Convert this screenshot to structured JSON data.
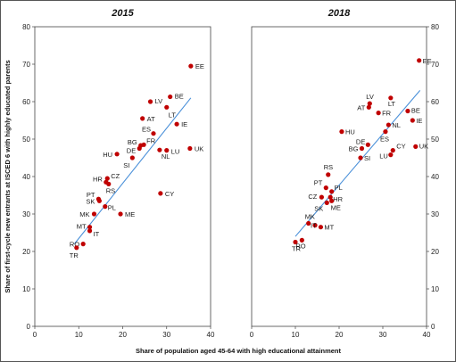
{
  "chart_data": [
    {
      "type": "scatter",
      "title": "2015",
      "xlim": [
        0,
        40
      ],
      "ylim": [
        0,
        80
      ],
      "x_ticks": [
        0,
        10,
        20,
        30,
        40
      ],
      "y_ticks": [
        0,
        10,
        20,
        30,
        40,
        50,
        60,
        70,
        80
      ],
      "point_color": "#c00000",
      "trend_color": "#4a90d9",
      "trendline": [
        [
          9,
          22
        ],
        [
          35.5,
          61
        ]
      ],
      "points": [
        {
          "label": "EE",
          "x": 35.5,
          "y": 69.5
        },
        {
          "label": "BE",
          "x": 30.8,
          "y": 61.3
        },
        {
          "label": "LV",
          "x": 26.3,
          "y": 60.0
        },
        {
          "label": "LT",
          "x": 30.0,
          "y": 58.5
        },
        {
          "label": "AT",
          "x": 24.5,
          "y": 55.5
        },
        {
          "label": "IE",
          "x": 32.3,
          "y": 54.0
        },
        {
          "label": "ES",
          "x": 27.0,
          "y": 51.5
        },
        {
          "label": "BG",
          "x": 24.1,
          "y": 48.3
        },
        {
          "label": "FR",
          "x": 24.8,
          "y": 48.5
        },
        {
          "label": "DE",
          "x": 23.8,
          "y": 47.5
        },
        {
          "label": "NL",
          "x": 28.4,
          "y": 47.1
        },
        {
          "label": "LU",
          "x": 30.0,
          "y": 47.0
        },
        {
          "label": "UK",
          "x": 35.3,
          "y": 47.5
        },
        {
          "label": "HU",
          "x": 18.7,
          "y": 46.0
        },
        {
          "label": "SI",
          "x": 22.2,
          "y": 45.0
        },
        {
          "label": "CZ",
          "x": 16.5,
          "y": 39.5
        },
        {
          "label": "HR",
          "x": 16.2,
          "y": 38.5
        },
        {
          "label": "RS",
          "x": 16.8,
          "y": 38.0
        },
        {
          "label": "PT",
          "x": 14.5,
          "y": 34.0
        },
        {
          "label": "SK",
          "x": 14.7,
          "y": 33.5
        },
        {
          "label": "PL",
          "x": 16.0,
          "y": 32.0
        },
        {
          "label": "CY",
          "x": 28.6,
          "y": 35.5
        },
        {
          "label": "MK",
          "x": 13.5,
          "y": 30.0
        },
        {
          "label": "ME",
          "x": 19.5,
          "y": 30.0
        },
        {
          "label": "MT",
          "x": 12.5,
          "y": 26.5
        },
        {
          "label": "IT",
          "x": 12.5,
          "y": 25.5
        },
        {
          "label": "RO",
          "x": 11.0,
          "y": 22.0
        },
        {
          "label": "TR",
          "x": 9.5,
          "y": 21.0
        }
      ]
    },
    {
      "type": "scatter",
      "title": "2018",
      "xlim": [
        0,
        40
      ],
      "ylim": [
        0,
        80
      ],
      "x_ticks": [
        0,
        10,
        20,
        30,
        40
      ],
      "y_ticks": [
        0,
        10,
        20,
        30,
        40,
        50,
        60,
        70,
        80
      ],
      "point_color": "#c00000",
      "trend_color": "#4a90d9",
      "trendline": [
        [
          10,
          24
        ],
        [
          38.5,
          63
        ]
      ],
      "points": [
        {
          "label": "EE",
          "x": 38.3,
          "y": 71.0
        },
        {
          "label": "LV",
          "x": 27.0,
          "y": 59.5
        },
        {
          "label": "LT",
          "x": 31.8,
          "y": 61.0
        },
        {
          "label": "AT",
          "x": 26.8,
          "y": 58.5
        },
        {
          "label": "FR",
          "x": 29.0,
          "y": 57.0
        },
        {
          "label": "BE",
          "x": 35.7,
          "y": 57.5
        },
        {
          "label": "IE",
          "x": 36.8,
          "y": 55.0
        },
        {
          "label": "NL",
          "x": 31.3,
          "y": 53.8
        },
        {
          "label": "HU",
          "x": 20.6,
          "y": 52.0
        },
        {
          "label": "DE",
          "x": 26.6,
          "y": 48.5
        },
        {
          "label": "ES",
          "x": 30.6,
          "y": 52.0
        },
        {
          "label": "BG",
          "x": 25.2,
          "y": 47.5
        },
        {
          "label": "UK",
          "x": 37.5,
          "y": 48.0
        },
        {
          "label": "CY",
          "x": 32.3,
          "y": 47.0
        },
        {
          "label": "LU",
          "x": 31.8,
          "y": 45.8
        },
        {
          "label": "SI",
          "x": 24.9,
          "y": 45.0
        },
        {
          "label": "RS",
          "x": 17.5,
          "y": 40.5
        },
        {
          "label": "PT",
          "x": 17.0,
          "y": 37.0
        },
        {
          "label": "PL",
          "x": 18.3,
          "y": 36.0
        },
        {
          "label": "HR",
          "x": 18.0,
          "y": 34.5
        },
        {
          "label": "CZ",
          "x": 16.0,
          "y": 34.5
        },
        {
          "label": "SK",
          "x": 17.2,
          "y": 33.0
        },
        {
          "label": "ME",
          "x": 18.3,
          "y": 33.5
        },
        {
          "label": "MK",
          "x": 13.0,
          "y": 27.5
        },
        {
          "label": "IT",
          "x": 14.5,
          "y": 27.0
        },
        {
          "label": "MT",
          "x": 15.8,
          "y": 26.5
        },
        {
          "label": "RO",
          "x": 11.5,
          "y": 23.0
        },
        {
          "label": "TR",
          "x": 10.0,
          "y": 22.5
        }
      ]
    }
  ],
  "axes": {
    "x_label": "Share of population aged 45-64 with high educational attainment",
    "y_label": "Share of first-cycle new entrants at ISCED 6 with highly educated parents"
  }
}
